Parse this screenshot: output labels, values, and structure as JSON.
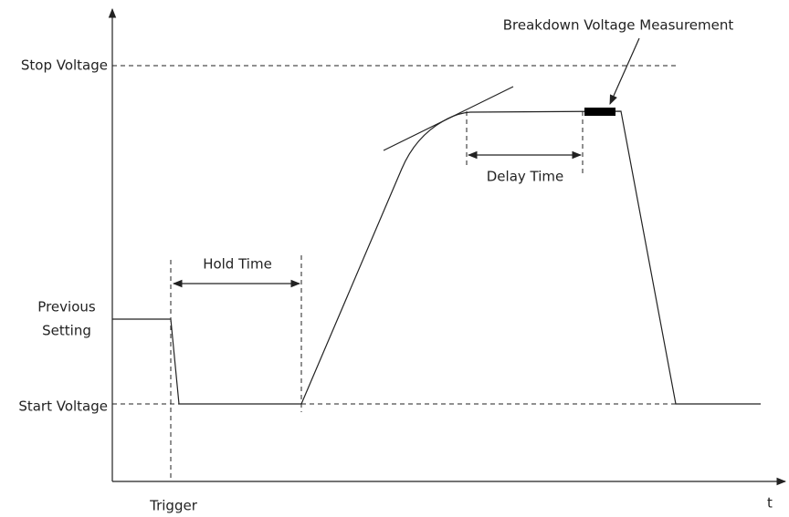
{
  "labels": {
    "stop_voltage": "Stop Voltage",
    "previous_setting": [
      "Previous",
      "Setting"
    ],
    "start_voltage": "Start Voltage",
    "trigger": "Trigger",
    "t": "t",
    "hold_time": "Hold Time",
    "delay_time": "Delay Time",
    "breakdown": "Breakdown Voltage Measurement"
  }
}
